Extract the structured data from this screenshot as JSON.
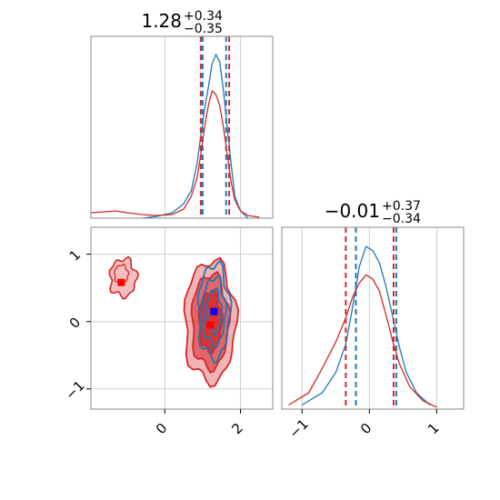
{
  "chart_data": [
    {
      "type": "histogram",
      "panel": "top-left",
      "title": {
        "value": "1.28",
        "plus": "+0.34",
        "minus": "−0.35"
      },
      "xlim": [
        -1.95,
        2.85
      ],
      "grid": true,
      "series": [
        {
          "color": "#1f77b4",
          "x": [
            -0.6,
            -0.2,
            0.2,
            0.5,
            0.7,
            0.85,
            0.95,
            1.05,
            1.15,
            1.25,
            1.35,
            1.45,
            1.55,
            1.65,
            1.75,
            1.85,
            2.0,
            2.2
          ],
          "y": [
            0.0,
            0.01,
            0.03,
            0.08,
            0.15,
            0.3,
            0.45,
            0.6,
            0.72,
            0.85,
            0.9,
            0.86,
            0.7,
            0.5,
            0.3,
            0.12,
            0.04,
            0.0
          ],
          "quantile_lines": [
            1.0,
            1.62
          ]
        },
        {
          "color": "#d62728",
          "x": [
            -1.95,
            -1.6,
            -1.3,
            -1.0,
            -0.6,
            -0.2,
            0.2,
            0.5,
            0.7,
            0.85,
            0.95,
            1.05,
            1.15,
            1.25,
            1.35,
            1.45,
            1.55,
            1.65,
            1.75,
            1.85,
            2.0,
            2.2,
            2.5
          ],
          "y": [
            0.03,
            0.035,
            0.04,
            0.03,
            0.02,
            0.015,
            0.02,
            0.05,
            0.12,
            0.22,
            0.35,
            0.5,
            0.62,
            0.7,
            0.68,
            0.62,
            0.5,
            0.35,
            0.2,
            0.1,
            0.04,
            0.015,
            0.005
          ],
          "quantile_lines": [
            0.95,
            1.7
          ]
        }
      ]
    },
    {
      "type": "histogram",
      "panel": "bottom-right",
      "title": {
        "value": "−0.01",
        "plus": "+0.37",
        "minus": "−0.34"
      },
      "xlim": [
        -1.3,
        1.4
      ],
      "xticks": [
        -1,
        0,
        1
      ],
      "grid": true,
      "series": [
        {
          "color": "#1f77b4",
          "x": [
            -1.0,
            -0.7,
            -0.5,
            -0.35,
            -0.25,
            -0.15,
            -0.05,
            0.05,
            0.15,
            0.25,
            0.35,
            0.45,
            0.55,
            0.7,
            0.9
          ],
          "y": [
            0.02,
            0.08,
            0.18,
            0.32,
            0.5,
            0.7,
            0.8,
            0.78,
            0.72,
            0.6,
            0.45,
            0.3,
            0.18,
            0.08,
            0.02
          ],
          "quantile_lines": [
            -0.2,
            0.4
          ]
        },
        {
          "color": "#d62728",
          "x": [
            -1.2,
            -0.9,
            -0.7,
            -0.5,
            -0.35,
            -0.25,
            -0.15,
            -0.05,
            0.05,
            0.15,
            0.25,
            0.35,
            0.45,
            0.6,
            0.8,
            1.0
          ],
          "y": [
            0.02,
            0.08,
            0.2,
            0.33,
            0.45,
            0.55,
            0.62,
            0.66,
            0.64,
            0.58,
            0.46,
            0.33,
            0.22,
            0.11,
            0.04,
            0.01
          ],
          "quantile_lines": [
            -0.35,
            0.36
          ]
        }
      ]
    },
    {
      "type": "contour",
      "panel": "bottom-left",
      "xlim": [
        -1.95,
        2.85
      ],
      "ylim": [
        -1.3,
        1.4
      ],
      "xticks": [
        0,
        2
      ],
      "yticks": [
        -1,
        0,
        1
      ],
      "grid": true,
      "series": [
        {
          "color": "#1f77b4",
          "center": [
            1.3,
            0.15
          ],
          "levels": [
            {
              "rx": 0.55,
              "ry": 0.7,
              "fill": false
            },
            {
              "rx": 0.4,
              "ry": 0.5,
              "fill": false
            },
            {
              "rx": 0.25,
              "ry": 0.32,
              "fill": false
            }
          ],
          "marker": [
            1.3,
            0.15
          ]
        },
        {
          "color": "#d62728",
          "center": [
            1.2,
            0.0
          ],
          "levels": [
            {
              "rx": 0.9,
              "ry": 0.9,
              "fill": true,
              "opacity": 0.35
            },
            {
              "rx": 0.65,
              "ry": 0.7,
              "fill": true,
              "opacity": 0.55
            },
            {
              "rx": 0.4,
              "ry": 0.45,
              "fill": true,
              "opacity": 0.8
            }
          ],
          "secondary_center": [
            -1.1,
            0.65
          ],
          "marker": [
            1.2,
            -0.05
          ],
          "marker2": [
            -1.15,
            0.58
          ]
        }
      ]
    }
  ]
}
